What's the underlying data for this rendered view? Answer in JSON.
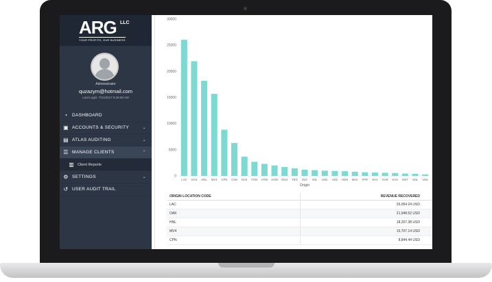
{
  "sidebar": {
    "logo": "ARG",
    "logo_suffix": "LLC",
    "tagline": "YOUR PROFITS, OUR BUSINESS",
    "role": "Administrator",
    "email": "quzazym@hotmail.com",
    "last_login": "Last Login: 7/21/2017 5:26:00 AM",
    "items": [
      {
        "label": "DASHBOARD",
        "icon": "speedometer-icon"
      },
      {
        "label": "ACCOUNTS & SECURITY",
        "icon": "lock-icon",
        "chevron": "chevron-down-icon"
      },
      {
        "label": "ATLAS AUDITING",
        "icon": "briefcase-icon",
        "chevron": "chevron-down-icon"
      },
      {
        "label": "MANAGE CLIENTS",
        "icon": "clients-icon",
        "chevron": "chevron-up-icon"
      },
      {
        "label": "Client Reports",
        "icon": "report-icon"
      },
      {
        "label": "SETTINGS",
        "icon": "gear-icon",
        "chevron": "chevron-down-icon"
      },
      {
        "label": "USER AUDIT TRAIL",
        "icon": "history-icon"
      }
    ]
  },
  "chart_data": {
    "type": "bar",
    "xlabel": "Origin",
    "ylabel": "",
    "ylim": [
      0,
      30000
    ],
    "yticks": [
      0,
      5000,
      10000,
      15000,
      20000,
      25000,
      30000
    ],
    "bar_color": "#7fd9d3",
    "categories": [
      "LAC",
      "OAK",
      "HNL",
      "MV4",
      "CPN",
      "CSN",
      "SCK",
      "FON",
      "HTM",
      "HON",
      "OGG",
      "YEG",
      "INO",
      "MIL",
      "LMC",
      "ADZ",
      "HDN",
      "MAV",
      "FPR",
      "NAV",
      "OAR",
      "KAH",
      "ONT",
      "SNL",
      "VNS"
    ],
    "values": [
      26054,
      21948,
      18207,
      15707,
      8844,
      6300,
      3700,
      2700,
      2300,
      2000,
      1700,
      1450,
      1200,
      1100,
      1000,
      950,
      900,
      800,
      700,
      650,
      600,
      550,
      450,
      400,
      300
    ]
  },
  "table": {
    "headers": [
      "ORIGIN LOCATION CODE",
      "REVENUE RECOVERED"
    ],
    "rows": [
      [
        "LAC",
        "26,054.24 USD"
      ],
      [
        "OAK",
        "21,948.52 USD"
      ],
      [
        "HNL",
        "18,207.38 USD"
      ],
      [
        "MV4",
        "15,707.14 USD"
      ],
      [
        "CPN",
        "8,844.44 USD"
      ]
    ]
  }
}
